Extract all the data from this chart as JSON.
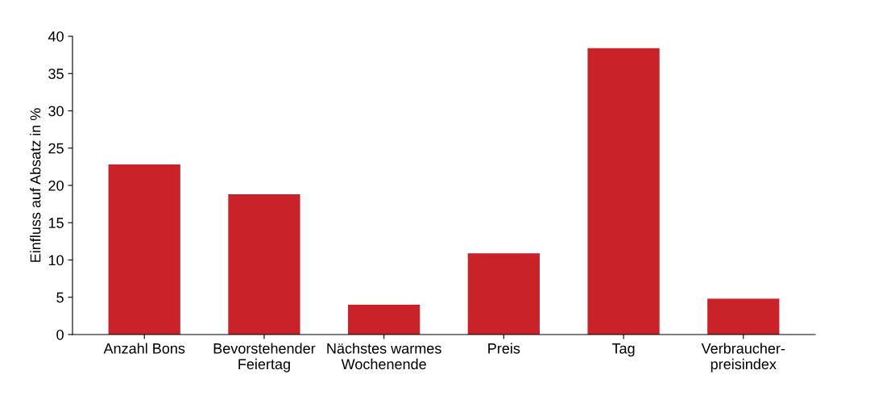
{
  "chart_data": {
    "type": "bar",
    "ylabel": "Einfluss auf Absatz in %",
    "categories": [
      "Anzahl Bons",
      "Bevorstehender\nFeiertag",
      "Nächstes warmes\nWochenende",
      "Preis",
      "Tag",
      "Verbraucher-\npreisindex"
    ],
    "values": [
      22.8,
      18.8,
      4.0,
      10.9,
      38.4,
      4.8
    ],
    "color": "#c92228",
    "ylim": [
      0,
      40
    ],
    "yticks": [
      0,
      5,
      10,
      15,
      20,
      25,
      30,
      35,
      40
    ],
    "grid": false
  }
}
